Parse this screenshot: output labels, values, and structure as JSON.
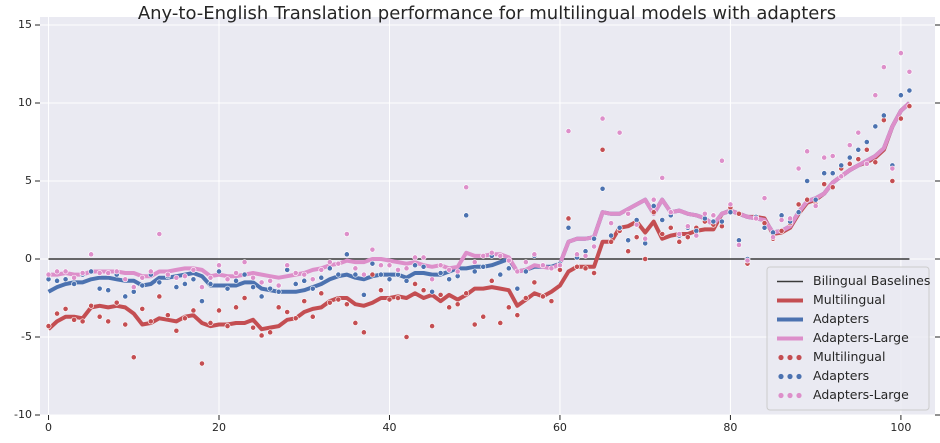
{
  "chart_data": {
    "type": "line",
    "title": "Any-to-English Translation performance for multilingual models with adapters",
    "x": [
      0,
      1,
      2,
      3,
      4,
      5,
      6,
      7,
      8,
      9,
      10,
      11,
      12,
      13,
      14,
      15,
      16,
      17,
      18,
      19,
      20,
      21,
      22,
      23,
      24,
      25,
      26,
      27,
      28,
      29,
      30,
      31,
      32,
      33,
      34,
      35,
      36,
      37,
      38,
      39,
      40,
      41,
      42,
      43,
      44,
      45,
      46,
      47,
      48,
      49,
      50,
      51,
      52,
      53,
      54,
      55,
      56,
      57,
      58,
      59,
      60,
      61,
      62,
      63,
      64,
      65,
      66,
      67,
      68,
      69,
      70,
      71,
      72,
      73,
      74,
      75,
      76,
      77,
      78,
      79,
      80,
      81,
      82,
      83,
      84,
      85,
      86,
      87,
      88,
      89,
      90,
      91,
      92,
      93,
      94,
      95,
      96,
      97,
      98,
      99,
      100,
      101
    ],
    "xlim": [
      -1,
      104
    ],
    "ylim": [
      -10,
      15
    ],
    "xticks": [
      0,
      20,
      40,
      60,
      80,
      100
    ],
    "yticks": [
      -10,
      -5,
      0,
      5,
      10,
      15
    ],
    "grid": true,
    "legend": "lower right",
    "hlines": [
      {
        "name": "Bilingual Baselines",
        "value": 0,
        "color": "#3a3a3a"
      }
    ],
    "series": [
      {
        "name": "Multilingual",
        "kind": "line",
        "color": "#c44e52",
        "values": [
          -4.5,
          -4.0,
          -3.7,
          -3.7,
          -3.8,
          -3.1,
          -3.0,
          -3.1,
          -3.0,
          -3.1,
          -3.5,
          -4.2,
          -4.1,
          -3.8,
          -3.9,
          -4.0,
          -3.7,
          -3.6,
          -4.1,
          -4.3,
          -4.2,
          -4.2,
          -4.1,
          -4.1,
          -3.9,
          -4.5,
          -4.4,
          -4.3,
          -3.9,
          -3.8,
          -3.4,
          -3.2,
          -3.1,
          -2.7,
          -2.5,
          -2.5,
          -2.9,
          -3.0,
          -2.8,
          -2.5,
          -2.5,
          -2.4,
          -2.5,
          -2.2,
          -2.5,
          -2.3,
          -2.7,
          -2.3,
          -2.6,
          -2.3,
          -1.9,
          -1.9,
          -1.8,
          -1.9,
          -2.0,
          -3.0,
          -2.6,
          -2.2,
          -2.4,
          -2.1,
          -1.7,
          -0.8,
          -0.5,
          -0.5,
          -0.5,
          1.1,
          1.1,
          2.0,
          2.1,
          2.4,
          1.7,
          2.4,
          1.3,
          1.5,
          1.6,
          1.6,
          1.8,
          1.9,
          1.9,
          2.9,
          3.1,
          2.9,
          2.7,
          2.7,
          2.6,
          1.6,
          1.7,
          2.0,
          2.9,
          3.6,
          3.8,
          4.2,
          4.9,
          5.3,
          5.7,
          6.0,
          6.2,
          6.5,
          7.0,
          8.5,
          9.5,
          10.0
        ]
      },
      {
        "name": "Adapters",
        "kind": "line",
        "color": "#4c72b0",
        "values": [
          -2.1,
          -1.8,
          -1.6,
          -1.5,
          -1.5,
          -1.3,
          -1.2,
          -1.2,
          -1.3,
          -1.4,
          -1.4,
          -1.7,
          -1.6,
          -1.2,
          -1.2,
          -1.1,
          -1.0,
          -0.9,
          -1.1,
          -1.7,
          -1.7,
          -1.7,
          -1.7,
          -1.5,
          -1.5,
          -1.9,
          -2.0,
          -2.1,
          -2.1,
          -2.1,
          -2.0,
          -1.8,
          -1.6,
          -1.3,
          -1.1,
          -1.0,
          -1.2,
          -1.3,
          -1.1,
          -1.0,
          -1.0,
          -1.0,
          -1.2,
          -0.9,
          -0.9,
          -1.0,
          -1.0,
          -0.8,
          -0.6,
          -0.6,
          -0.5,
          -0.5,
          -0.4,
          -0.2,
          0.0,
          -0.8,
          -0.7,
          -0.5,
          -0.5,
          -0.5,
          -0.3,
          1.1,
          1.3,
          1.3,
          1.4,
          3.0,
          2.9,
          2.9,
          3.2,
          3.5,
          3.8,
          2.9,
          3.8,
          3.0,
          3.1,
          2.9,
          2.8,
          2.6,
          2.2,
          2.9,
          3.1,
          2.9,
          2.7,
          2.6,
          2.5,
          1.7,
          1.8,
          2.1,
          3.0,
          3.7,
          3.9,
          4.2,
          4.9,
          5.3,
          5.7,
          6.0,
          6.3,
          6.6,
          7.1,
          8.5,
          9.5,
          10.0
        ]
      },
      {
        "name": "Adapters-Large",
        "kind": "line",
        "color": "#dd8fca",
        "values": [
          -1.0,
          -1.0,
          -0.9,
          -1.0,
          -1.0,
          -0.8,
          -0.8,
          -0.8,
          -0.8,
          -0.9,
          -0.9,
          -1.1,
          -1.1,
          -0.8,
          -0.8,
          -0.7,
          -0.6,
          -0.6,
          -0.7,
          -1.1,
          -1.0,
          -1.1,
          -1.1,
          -1.0,
          -0.9,
          -1.0,
          -1.1,
          -1.2,
          -1.1,
          -1.0,
          -0.9,
          -0.7,
          -0.6,
          -0.4,
          -0.3,
          -0.1,
          -0.2,
          -0.2,
          0.0,
          0.0,
          -0.1,
          -0.2,
          -0.3,
          -0.2,
          -0.4,
          -0.5,
          -0.4,
          -0.6,
          -0.5,
          0.4,
          0.2,
          0.2,
          0.3,
          0.3,
          0.1,
          -0.8,
          -0.7,
          -0.4,
          -0.5,
          -0.6,
          -0.3,
          1.1,
          1.3,
          1.3,
          1.4,
          3.0,
          2.9,
          2.9,
          3.2,
          3.5,
          3.8,
          2.9,
          3.8,
          3.0,
          3.1,
          2.9,
          2.8,
          2.6,
          2.2,
          2.9,
          3.1,
          2.9,
          2.7,
          2.6,
          2.5,
          1.7,
          1.8,
          2.1,
          3.0,
          3.7,
          3.9,
          4.2,
          4.9,
          5.3,
          5.7,
          6.0,
          6.3,
          6.6,
          7.1,
          8.5,
          9.5,
          10.0
        ]
      },
      {
        "name": "Multilingual",
        "kind": "scatter",
        "color": "#c44e52",
        "values": [
          -4.3,
          -3.5,
          -3.2,
          -3.9,
          -4.0,
          -3.0,
          -3.7,
          -4.0,
          -2.8,
          -4.2,
          -6.3,
          -3.2,
          -4.0,
          -2.4,
          -3.6,
          -4.6,
          -3.8,
          -3.3,
          -6.7,
          -4.1,
          -3.3,
          -4.3,
          -3.1,
          -2.5,
          -4.4,
          -4.9,
          -4.7,
          -3.1,
          -3.4,
          -3.8,
          -2.7,
          -3.7,
          -2.2,
          -2.8,
          -2.6,
          -2.9,
          -4.1,
          -4.7,
          -1.0,
          -2.0,
          -2.6,
          -2.5,
          -5.0,
          -1.6,
          -2.0,
          -4.3,
          -2.3,
          -3.1,
          -2.9,
          -2.2,
          -4.2,
          -3.7,
          -1.4,
          -4.1,
          -3.1,
          -3.6,
          -2.5,
          -1.5,
          -2.4,
          -2.7,
          -0.7,
          2.6,
          -0.5,
          -0.6,
          -0.9,
          7.0,
          1.1,
          1.8,
          0.5,
          1.4,
          0.0,
          3.0,
          1.6,
          2.0,
          1.1,
          1.4,
          2.0,
          2.4,
          2.2,
          2.1,
          3.3,
          2.9,
          -0.3,
          2.7,
          2.3,
          1.3,
          1.8,
          2.3,
          3.5,
          3.8,
          3.5,
          4.8,
          4.6,
          5.8,
          6.1,
          6.4,
          7.0,
          6.2,
          8.9,
          5.0,
          9.0,
          9.8
        ]
      },
      {
        "name": "Adapters",
        "kind": "scatter",
        "color": "#4c72b0",
        "values": [
          -1.3,
          -1.4,
          -1.3,
          -1.6,
          -1.0,
          -0.8,
          -1.9,
          -2.0,
          -1.0,
          -2.4,
          -2.1,
          -1.7,
          -1.0,
          -1.5,
          -1.1,
          -1.8,
          -1.6,
          -1.3,
          -2.7,
          -1.6,
          -0.8,
          -1.9,
          -1.4,
          -1.0,
          -1.8,
          -2.4,
          -1.9,
          -2.1,
          -0.7,
          -1.6,
          -1.4,
          -1.9,
          -1.2,
          -0.6,
          -1.0,
          0.3,
          -1.0,
          -2.3,
          -0.3,
          -1.0,
          -1.3,
          -1.0,
          -1.4,
          -0.4,
          -0.5,
          -2.1,
          -0.9,
          -1.3,
          -1.1,
          2.8,
          -0.8,
          -0.5,
          0.2,
          -1.0,
          -0.6,
          -1.9,
          -0.8,
          0.2,
          -0.4,
          -0.6,
          -0.3,
          2.0,
          0.1,
          0.5,
          1.3,
          4.5,
          1.5,
          2.0,
          1.2,
          2.5,
          1.0,
          3.4,
          2.5,
          2.8,
          1.5,
          2.0,
          1.8,
          2.6,
          2.4,
          2.4,
          3.0,
          1.2,
          0.0,
          2.7,
          2.0,
          1.7,
          2.8,
          2.4,
          3.0,
          5.0,
          3.8,
          5.5,
          5.5,
          6.0,
          6.5,
          7.0,
          7.5,
          8.5,
          9.2,
          6.0,
          10.5,
          10.8
        ]
      },
      {
        "name": "Adapters-Large",
        "kind": "scatter",
        "color": "#dd8fca",
        "values": [
          -1.0,
          -0.8,
          -0.8,
          -1.2,
          -0.9,
          0.3,
          -0.9,
          -0.9,
          -0.8,
          -1.3,
          -1.8,
          -1.2,
          -0.8,
          1.6,
          -1.0,
          -1.2,
          -1.1,
          -0.7,
          -1.8,
          -1.2,
          -0.4,
          -1.3,
          -0.9,
          -0.2,
          -1.2,
          -1.5,
          -1.4,
          -1.7,
          -0.4,
          -0.9,
          -1.0,
          -1.3,
          -0.7,
          -0.2,
          -0.3,
          1.6,
          -0.6,
          -1.0,
          0.6,
          -0.4,
          -0.4,
          -0.7,
          -0.6,
          0.1,
          0.1,
          -1.3,
          -0.4,
          -0.7,
          -0.8,
          4.6,
          -0.2,
          0.2,
          0.4,
          0.2,
          -0.1,
          -0.8,
          -0.2,
          0.3,
          -0.4,
          -0.6,
          -0.4,
          8.2,
          0.3,
          0.2,
          0.8,
          9.0,
          2.3,
          8.1,
          2.9,
          2.2,
          1.3,
          3.8,
          5.2,
          3.0,
          1.6,
          2.1,
          1.5,
          2.9,
          2.8,
          6.3,
          3.5,
          0.9,
          -0.1,
          2.6,
          3.9,
          1.4,
          2.5,
          2.6,
          5.8,
          6.9,
          3.4,
          6.5,
          6.6,
          5.3,
          7.3,
          8.1,
          6.1,
          10.5,
          12.3,
          5.8,
          13.2,
          12.0
        ]
      }
    ]
  }
}
